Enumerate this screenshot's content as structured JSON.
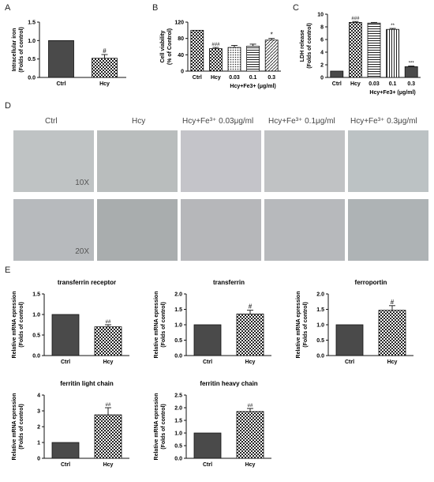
{
  "panels": {
    "A": "A",
    "B": "B",
    "C": "C",
    "D": "D",
    "E": "E"
  },
  "micro": {
    "labels": [
      "Ctrl",
      "Hcy",
      "Hcy+Fe³⁺ 0.03μg/ml",
      "Hcy+Fe³⁺ 0.1μg/ml",
      "Hcy+Fe³⁺ 0.3μg/ml"
    ],
    "mag_top": "10X",
    "mag_bottom": "20X"
  },
  "chart_data": [
    {
      "id": "chartA",
      "type": "bar",
      "title": "",
      "ylabel_lines": [
        "Intracellular iron",
        "(Folds of control)"
      ],
      "categories": [
        "Ctrl",
        "Hcy"
      ],
      "values": [
        1.0,
        0.52
      ],
      "errors": [
        0,
        0.1
      ],
      "annotations": [
        "",
        "#"
      ],
      "ylim": [
        0,
        1.5
      ],
      "yticks": [
        0,
        0.5,
        1.0,
        1.5
      ],
      "ytick_labels": [
        "0.0",
        "0.5",
        "1.0",
        "1.5"
      ],
      "patterns": [
        "solid",
        "check"
      ],
      "xlabel": ""
    },
    {
      "id": "chartB",
      "type": "bar",
      "title": "",
      "ylabel_lines": [
        "Cell viability",
        "(% of Control)"
      ],
      "categories": [
        "Ctrl",
        "Hcy",
        "0.03",
        "0.1",
        "0.3"
      ],
      "values": [
        100,
        55,
        58,
        61,
        76
      ],
      "errors": [
        0,
        3,
        5,
        5,
        4
      ],
      "annotations": [
        "",
        "###",
        "",
        "",
        "*"
      ],
      "ylim": [
        0,
        120
      ],
      "yticks": [
        0,
        40,
        80,
        120
      ],
      "ytick_labels": [
        "0",
        "40",
        "80",
        "120"
      ],
      "patterns": [
        "check",
        "check",
        "dots",
        "hlines",
        "diag"
      ],
      "xlabel": "Hcy+Fe3+ (μg/ml)"
    },
    {
      "id": "chartC",
      "type": "bar",
      "title": "",
      "ylabel_lines": [
        "LDH release",
        "(Folds of control)"
      ],
      "categories": [
        "Ctrl",
        "Hcy",
        "0.03",
        "0.1",
        "0.3"
      ],
      "values": [
        1.0,
        8.7,
        8.6,
        7.6,
        1.7
      ],
      "errors": [
        0,
        0.15,
        0.1,
        0.15,
        0.1
      ],
      "annotations": [
        "",
        "###",
        "",
        "**",
        "***"
      ],
      "ylim": [
        0,
        10
      ],
      "yticks": [
        0,
        2,
        4,
        6,
        8,
        10
      ],
      "ytick_labels": [
        "0",
        "2",
        "4",
        "6",
        "8",
        "10"
      ],
      "patterns": [
        "solid",
        "check",
        "hlines",
        "vlines",
        "solid"
      ],
      "xlabel": "Hcy+Fe3+ (μg/ml)"
    },
    {
      "id": "chartE1",
      "type": "bar",
      "title": "transferrin receptor",
      "ylabel_lines": [
        "Relative mRNA epression",
        "(Folds of control)"
      ],
      "categories": [
        "Ctrl",
        "Hcy"
      ],
      "values": [
        1.0,
        0.7
      ],
      "errors": [
        0,
        0.05
      ],
      "annotations": [
        "",
        "##"
      ],
      "ylim": [
        0,
        1.5
      ],
      "yticks": [
        0,
        0.5,
        1.0,
        1.5
      ],
      "ytick_labels": [
        "0.0",
        "0.5",
        "1.0",
        "1.5"
      ],
      "patterns": [
        "solid",
        "check"
      ],
      "xlabel": ""
    },
    {
      "id": "chartE2",
      "type": "bar",
      "title": "transferrin",
      "ylabel_lines": [
        "Relative mRNA epression",
        "(Folds of control)"
      ],
      "categories": [
        "Ctrl",
        "Hcy"
      ],
      "values": [
        1.0,
        1.35
      ],
      "errors": [
        0,
        0.12
      ],
      "annotations": [
        "",
        "#"
      ],
      "ylim": [
        0,
        2.0
      ],
      "yticks": [
        0,
        0.5,
        1.0,
        1.5,
        2.0
      ],
      "ytick_labels": [
        "0.0",
        "0.5",
        "1.0",
        "1.5",
        "2.0"
      ],
      "patterns": [
        "solid",
        "check"
      ],
      "xlabel": ""
    },
    {
      "id": "chartE3",
      "type": "bar",
      "title": "ferroportin",
      "ylabel_lines": [
        "Relative mRNA epression",
        "(Folds of control)"
      ],
      "categories": [
        "Ctrl",
        "Hcy"
      ],
      "values": [
        1.0,
        1.47
      ],
      "errors": [
        0,
        0.15
      ],
      "annotations": [
        "",
        "#"
      ],
      "ylim": [
        0,
        2.0
      ],
      "yticks": [
        0,
        0.5,
        1.0,
        1.5,
        2.0
      ],
      "ytick_labels": [
        "0.0",
        "0.5",
        "1.0",
        "1.5",
        "2.0"
      ],
      "patterns": [
        "solid",
        "check"
      ],
      "xlabel": ""
    },
    {
      "id": "chartE4",
      "type": "bar",
      "title": "ferritin light chain",
      "ylabel_lines": [
        "Relative mRNA epression",
        "(Folds of control)"
      ],
      "categories": [
        "Ctrl",
        "Hcy"
      ],
      "values": [
        1.0,
        2.75
      ],
      "errors": [
        0,
        0.45
      ],
      "annotations": [
        "",
        "##"
      ],
      "ylim": [
        0,
        4
      ],
      "yticks": [
        0,
        1,
        2,
        3,
        4
      ],
      "ytick_labels": [
        "0",
        "1",
        "2",
        "3",
        "4"
      ],
      "patterns": [
        "solid",
        "check"
      ],
      "xlabel": ""
    },
    {
      "id": "chartE5",
      "type": "bar",
      "title": "ferritin heavy chain",
      "ylabel_lines": [
        "Relative mRNA epression",
        "(Folds of control)"
      ],
      "categories": [
        "Ctrl",
        "Hcy"
      ],
      "values": [
        1.0,
        1.85
      ],
      "errors": [
        0,
        0.12
      ],
      "annotations": [
        "",
        "##"
      ],
      "ylim": [
        0,
        2.5
      ],
      "yticks": [
        0,
        0.5,
        1.0,
        1.5,
        2.0,
        2.5
      ],
      "ytick_labels": [
        "0.0",
        "0.5",
        "1.0",
        "1.5",
        "2.0",
        "2.5"
      ],
      "patterns": [
        "solid",
        "check"
      ],
      "xlabel": ""
    }
  ]
}
